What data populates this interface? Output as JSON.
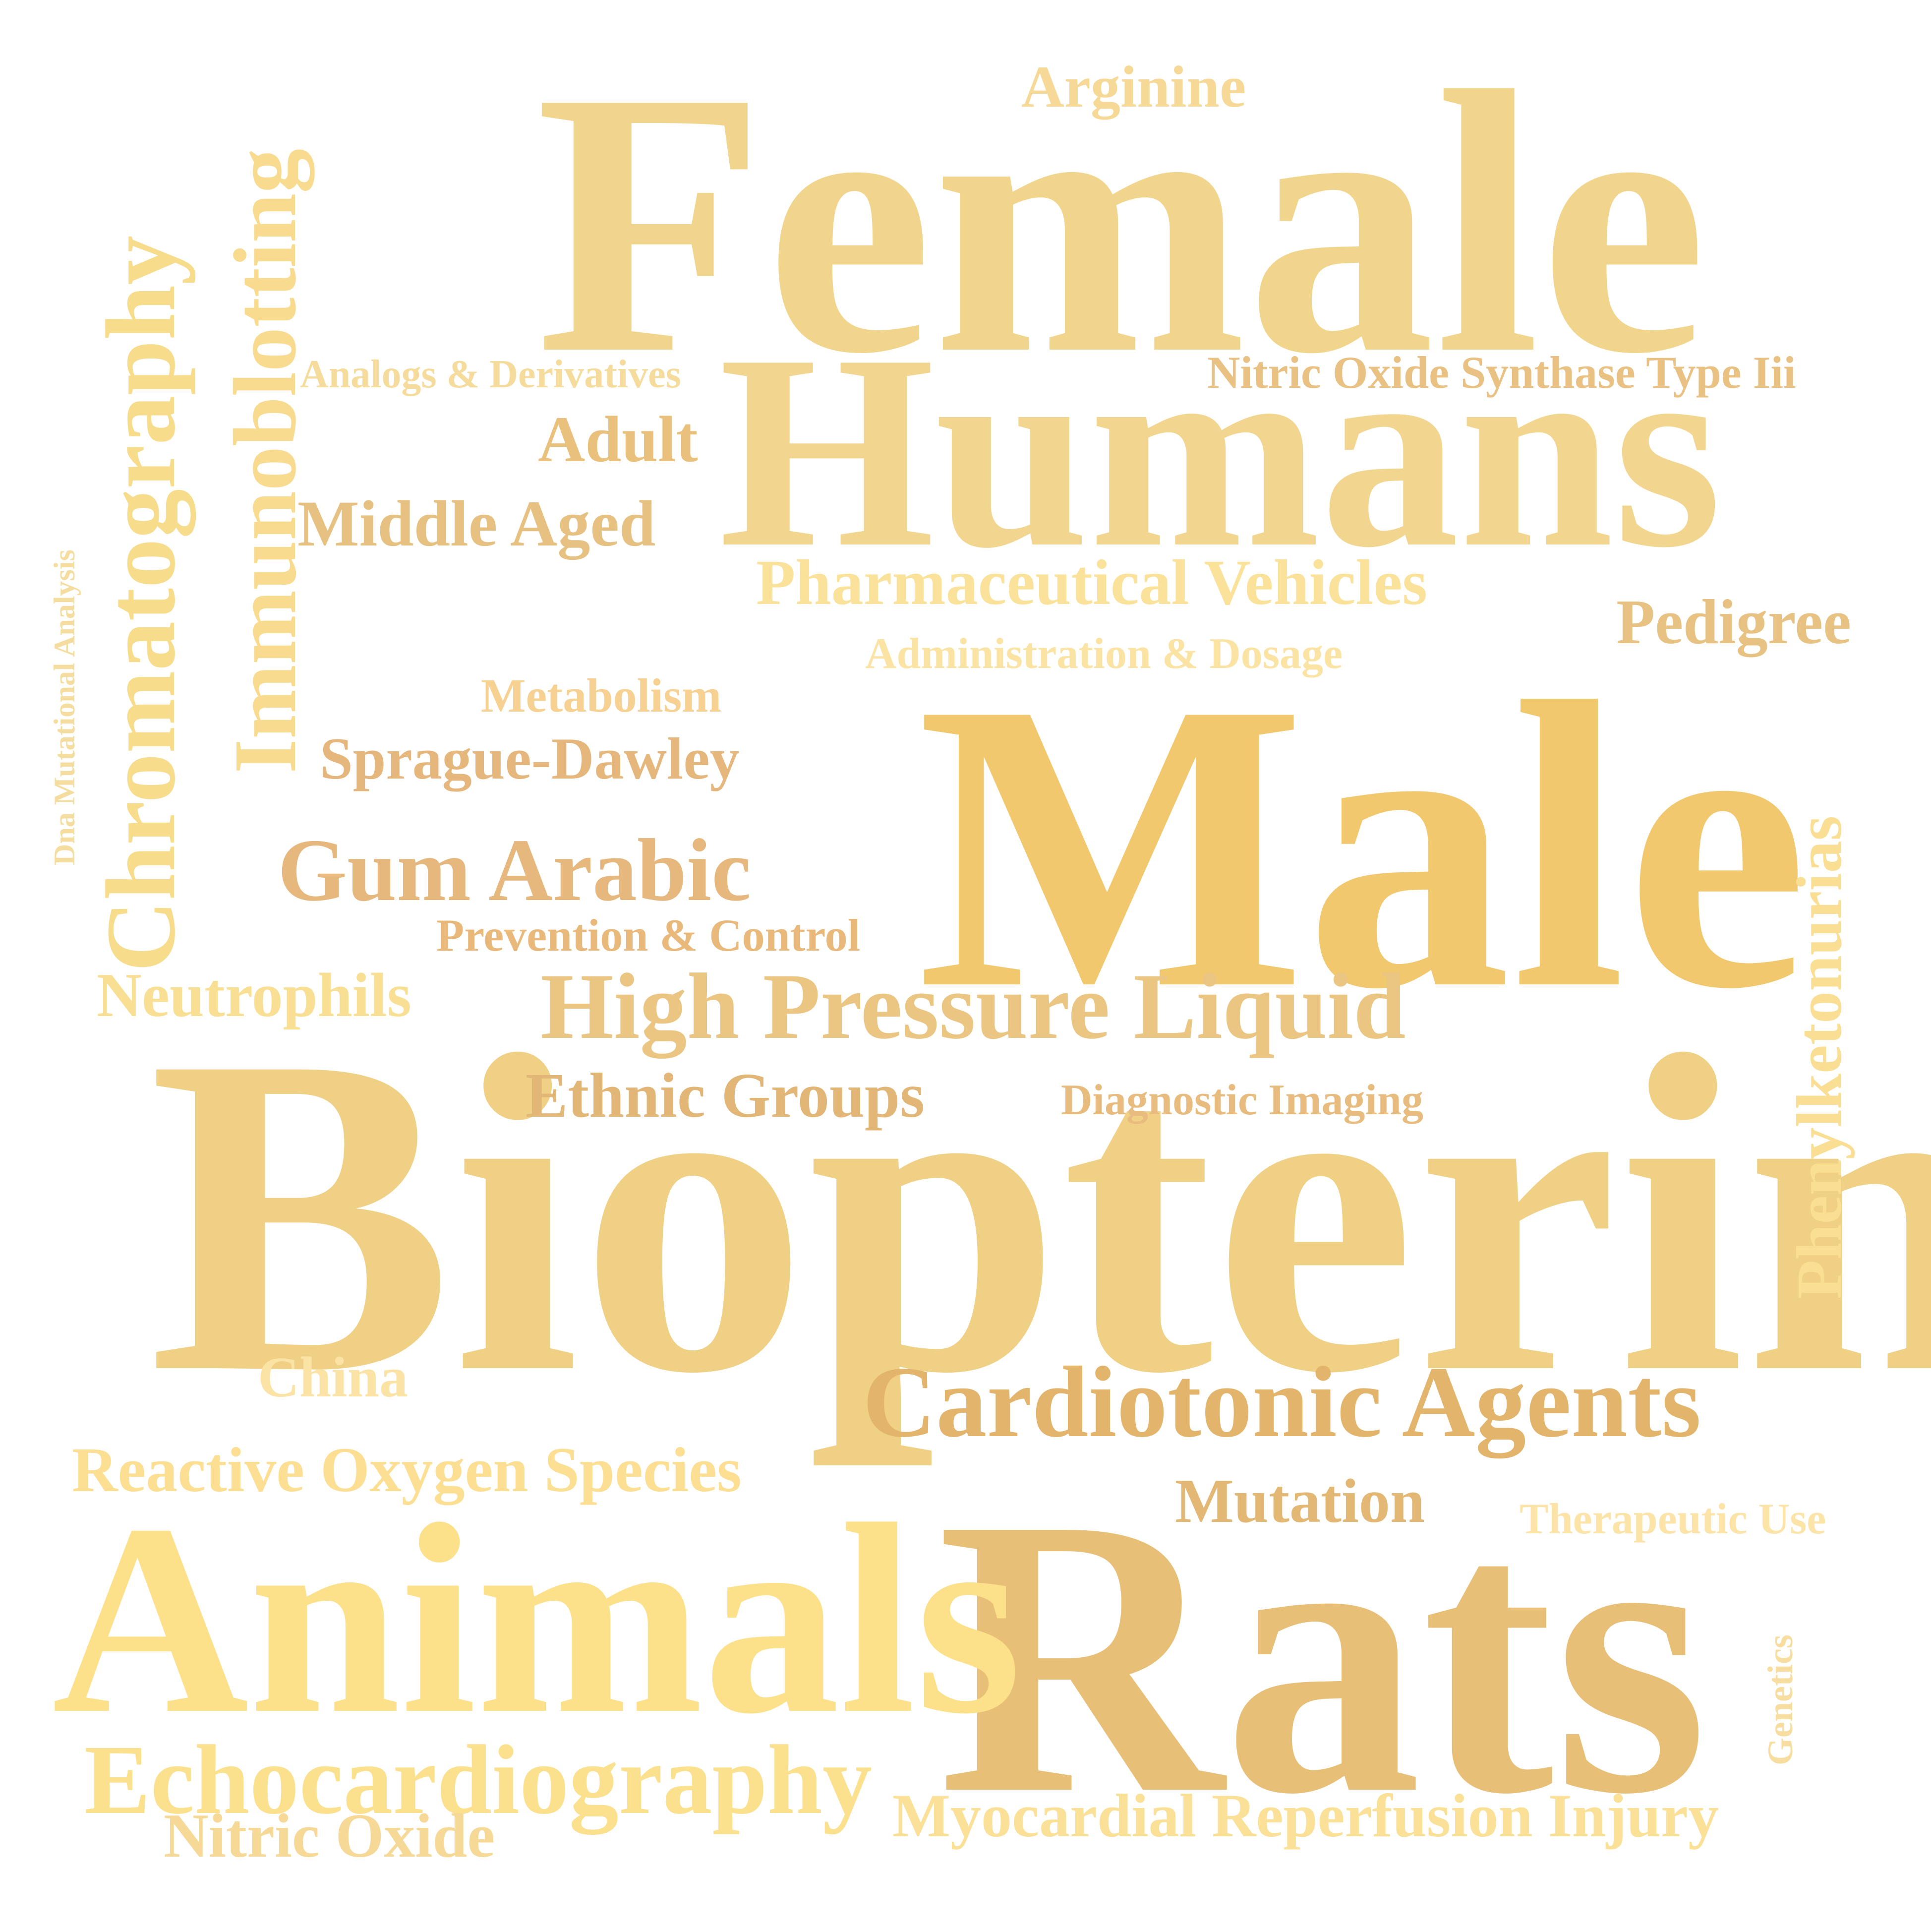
{
  "words": {
    "female": {
      "text": "Female",
      "color": "#f2d58d"
    },
    "humans": {
      "text": "Humans",
      "color": "#f2d68f"
    },
    "male": {
      "text": "Male",
      "color": "#f2c86f"
    },
    "biopterin": {
      "text": "Biopterin",
      "color": "#efd084"
    },
    "rats": {
      "text": "Rats",
      "color": "#e8bf77"
    },
    "animals": {
      "text": "Animals",
      "color": "#fde08a"
    },
    "chromatography": {
      "text": "Chromatography",
      "color": "#f7dc8b"
    },
    "immunoblotting": {
      "text": "Immunoblotting",
      "color": "#f8db8e"
    },
    "arginine": {
      "text": "Arginine",
      "color": "#f6d996"
    },
    "analogs_derivatives": {
      "text": "Analogs & Derivatives",
      "color": "#f6dc9c"
    },
    "nitric_oxide_synthase": {
      "text": "Nitric Oxide Synthase Type Iii",
      "color": "#e8c183"
    },
    "adult": {
      "text": "Adult",
      "color": "#eac17c"
    },
    "middle_aged": {
      "text": "Middle Aged",
      "color": "#e6c182"
    },
    "dna_mutational": {
      "text": "Dna Mutational Analysis",
      "color": "#f5dda0"
    },
    "pharmaceutical_vehicles": {
      "text": "Pharmaceutical Vehicles",
      "color": "#fbe29a"
    },
    "pedigree": {
      "text": "Pedigree",
      "color": "#e8c282"
    },
    "administration_dosage": {
      "text": "Administration & Dosage",
      "color": "#fbe3a4"
    },
    "metabolism": {
      "text": "Metabolism",
      "color": "#f7d191"
    },
    "sprague_dawley": {
      "text": "Sprague-Dawley",
      "color": "#e6b77d"
    },
    "gum_arabic": {
      "text": "Gum Arabic",
      "color": "#e6b87e"
    },
    "prevention_control": {
      "text": "Prevention & Control",
      "color": "#e8b97b"
    },
    "neutrophils": {
      "text": "Neutrophils",
      "color": "#f9df93"
    },
    "high_pressure_liquid": {
      "text": "High Pressure Liquid",
      "color": "#ebc582"
    },
    "phenylketonurias": {
      "text": "Phenylketonurias",
      "color": "#f9de94"
    },
    "ethnic_groups": {
      "text": "Ethnic Groups",
      "color": "#e2b676"
    },
    "diagnostic_imaging": {
      "text": "Diagnostic Imaging",
      "color": "#e8bc7e"
    },
    "china": {
      "text": "China",
      "color": "#fbe2a5"
    },
    "cardiotonic_agents": {
      "text": "Cardiotonic Agents",
      "color": "#e3b46c"
    },
    "reactive_oxygen": {
      "text": "Reactive Oxygen Species",
      "color": "#fcdf93"
    },
    "mutation": {
      "text": "Mutation",
      "color": "#e3b874"
    },
    "therapeutic_use": {
      "text": "Therapeutic Use",
      "color": "#fce3a7"
    },
    "genetics": {
      "text": "Genetics",
      "color": "#f8dda1"
    },
    "echocardiography": {
      "text": "Echocardiography",
      "color": "#fbe08e"
    },
    "nitric_oxide": {
      "text": "Nitric Oxide",
      "color": "#f7d997"
    },
    "myocardial_reperfusion": {
      "text": "Myocardial Reperfusion Injury",
      "color": "#fae197"
    }
  }
}
